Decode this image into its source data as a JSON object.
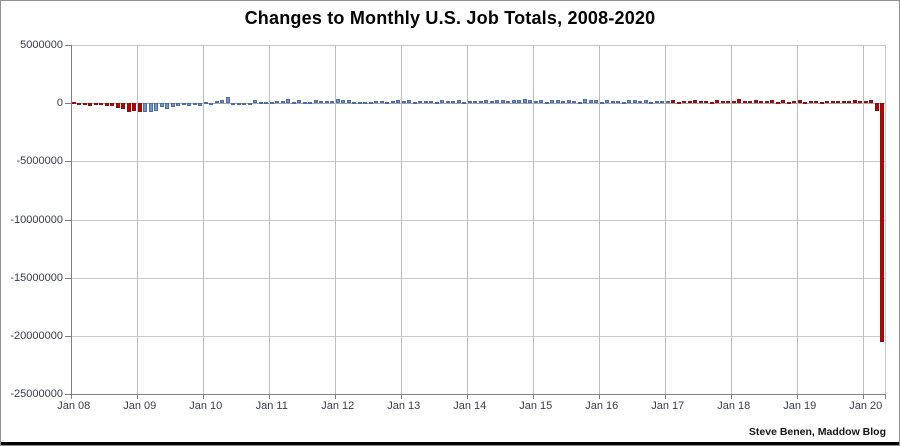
{
  "chart": {
    "title": "Changes to Monthly U.S. Job Totals, 2008-2020",
    "attribution": "Steve Benen, Maddow Blog"
  },
  "chart_data": {
    "type": "bar",
    "title": "Changes to Monthly U.S. Job Totals, 2008-2020",
    "xlabel": "",
    "ylabel": "",
    "unit": "jobs",
    "grid": true,
    "legend": false,
    "x_axis": {
      "interval": "monthly",
      "start": "Jan 2008",
      "end": "Apr 2020",
      "tick_labels": [
        "Jan 08",
        "Jan 09",
        "Jan 10",
        "Jan 11",
        "Jan 12",
        "Jan 13",
        "Jan 14",
        "Jan 15",
        "Jan 16",
        "Jan 17",
        "Jan 18",
        "Jan 19",
        "Jan 20"
      ]
    },
    "y_axis": {
      "min": -25000000,
      "max": 5000000,
      "gridline_step": 5000000,
      "tick_labels": [
        "5000000",
        "0",
        "-5000000",
        "-10000000",
        "-15000000",
        "-20000000",
        "-25000000"
      ]
    },
    "values_by_year": {
      "2008": [
        18000,
        -86000,
        -78000,
        -210000,
        -185000,
        -165000,
        -205000,
        -267000,
        -452000,
        -469000,
        -775000,
        -695000
      ],
      "2009": [
        -783000,
        -743000,
        -800000,
        -695000,
        -361000,
        -482000,
        -339000,
        -231000,
        -199000,
        -202000,
        -5000,
        -276000
      ],
      "2010": [
        16000,
        -51000,
        158000,
        251000,
        516000,
        -122000,
        -61000,
        -42000,
        -52000,
        257000,
        123000,
        88000
      ],
      "2011": [
        42000,
        188000,
        225000,
        346000,
        73000,
        235000,
        70000,
        107000,
        246000,
        202000,
        146000,
        207000
      ],
      "2012": [
        338000,
        257000,
        239000,
        75000,
        115000,
        87000,
        143000,
        190000,
        181000,
        132000,
        149000,
        243000
      ],
      "2013": [
        197000,
        280000,
        141000,
        203000,
        216000,
        146000,
        137000,
        275000,
        185000,
        189000,
        291000,
        84000
      ],
      "2014": [
        168000,
        222000,
        203000,
        304000,
        229000,
        267000,
        243000,
        203000,
        271000,
        243000,
        331000,
        292000
      ],
      "2015": [
        201000,
        266000,
        85000,
        251000,
        273000,
        228000,
        277000,
        150000,
        100000,
        344000,
        298000,
        271000
      ],
      "2016": [
        126000,
        237000,
        225000,
        153000,
        43000,
        297000,
        291000,
        176000,
        249000,
        124000,
        164000,
        155000
      ],
      "2017": [
        216000,
        232000,
        50000,
        175000,
        145000,
        239000,
        190000,
        221000,
        14000,
        271000,
        216000,
        175000
      ],
      "2018": [
        171000,
        324000,
        155000,
        175000,
        268000,
        208000,
        178000,
        282000,
        108000,
        277000,
        119000,
        182000
      ],
      "2019": [
        312000,
        56000,
        153000,
        216000,
        62000,
        178000,
        166000,
        219000,
        193000,
        185000,
        261000,
        184000
      ],
      "2020": [
        214000,
        251000,
        -701000,
        -20500000
      ]
    },
    "bar_colors": {
      "red": {
        "fill": "#c00000",
        "stroke": "#8c1010"
      },
      "blue": {
        "fill": "#7295c5",
        "stroke": "#4a6da8"
      }
    },
    "color_spans": [
      {
        "start_index": 0,
        "end_index": 12,
        "months": "Jan 2008 - Jan 2009",
        "color": "red"
      },
      {
        "start_index": 13,
        "end_index": 108,
        "months": "Feb 2009 - Jan 2017",
        "color": "blue"
      },
      {
        "start_index": 109,
        "end_index": 147,
        "months": "Feb 2017 - Apr 2020",
        "color": "red"
      }
    ],
    "notable_values": {
      "Mar 2020": -701000,
      "Apr 2020": -20500000
    }
  }
}
